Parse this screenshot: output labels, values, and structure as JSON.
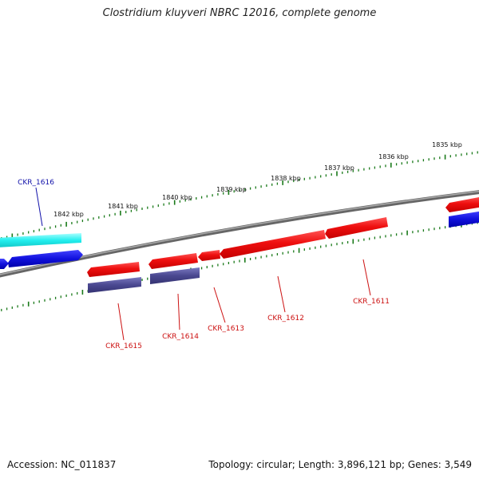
{
  "title": "Clostridium kluyveri NBRC 12016, complete genome",
  "footer": {
    "accession": "Accession: NC_011837",
    "summary": "Topology: circular; Length: 3,896,121 bp; Genes: 3,549"
  },
  "colors": {
    "backbone": "#777777",
    "ticks": "#1a7a1a",
    "forward_red": "#ee1111",
    "reverse_red": "#ee1111",
    "cyan": "#22eeee",
    "blue": "#1111dd",
    "slate": "#4a4890",
    "label_red": "#cc1111",
    "label_blue": "#1111aa"
  },
  "kbp_labels": [
    "1842 kbp",
    "1841 kbp",
    "1840 kbp",
    "1839 kbp",
    "1838 kbp",
    "1837 kbp",
    "1836 kbp",
    "1835 kbp"
  ],
  "gene_labels": [
    {
      "id": "CKR_1616",
      "color": "blue"
    },
    {
      "id": "CKR_1615",
      "color": "red"
    },
    {
      "id": "CKR_1614",
      "color": "red"
    },
    {
      "id": "CKR_1613",
      "color": "red"
    },
    {
      "id": "CKR_1612",
      "color": "red"
    },
    {
      "id": "CKR_1611",
      "color": "red"
    }
  ]
}
